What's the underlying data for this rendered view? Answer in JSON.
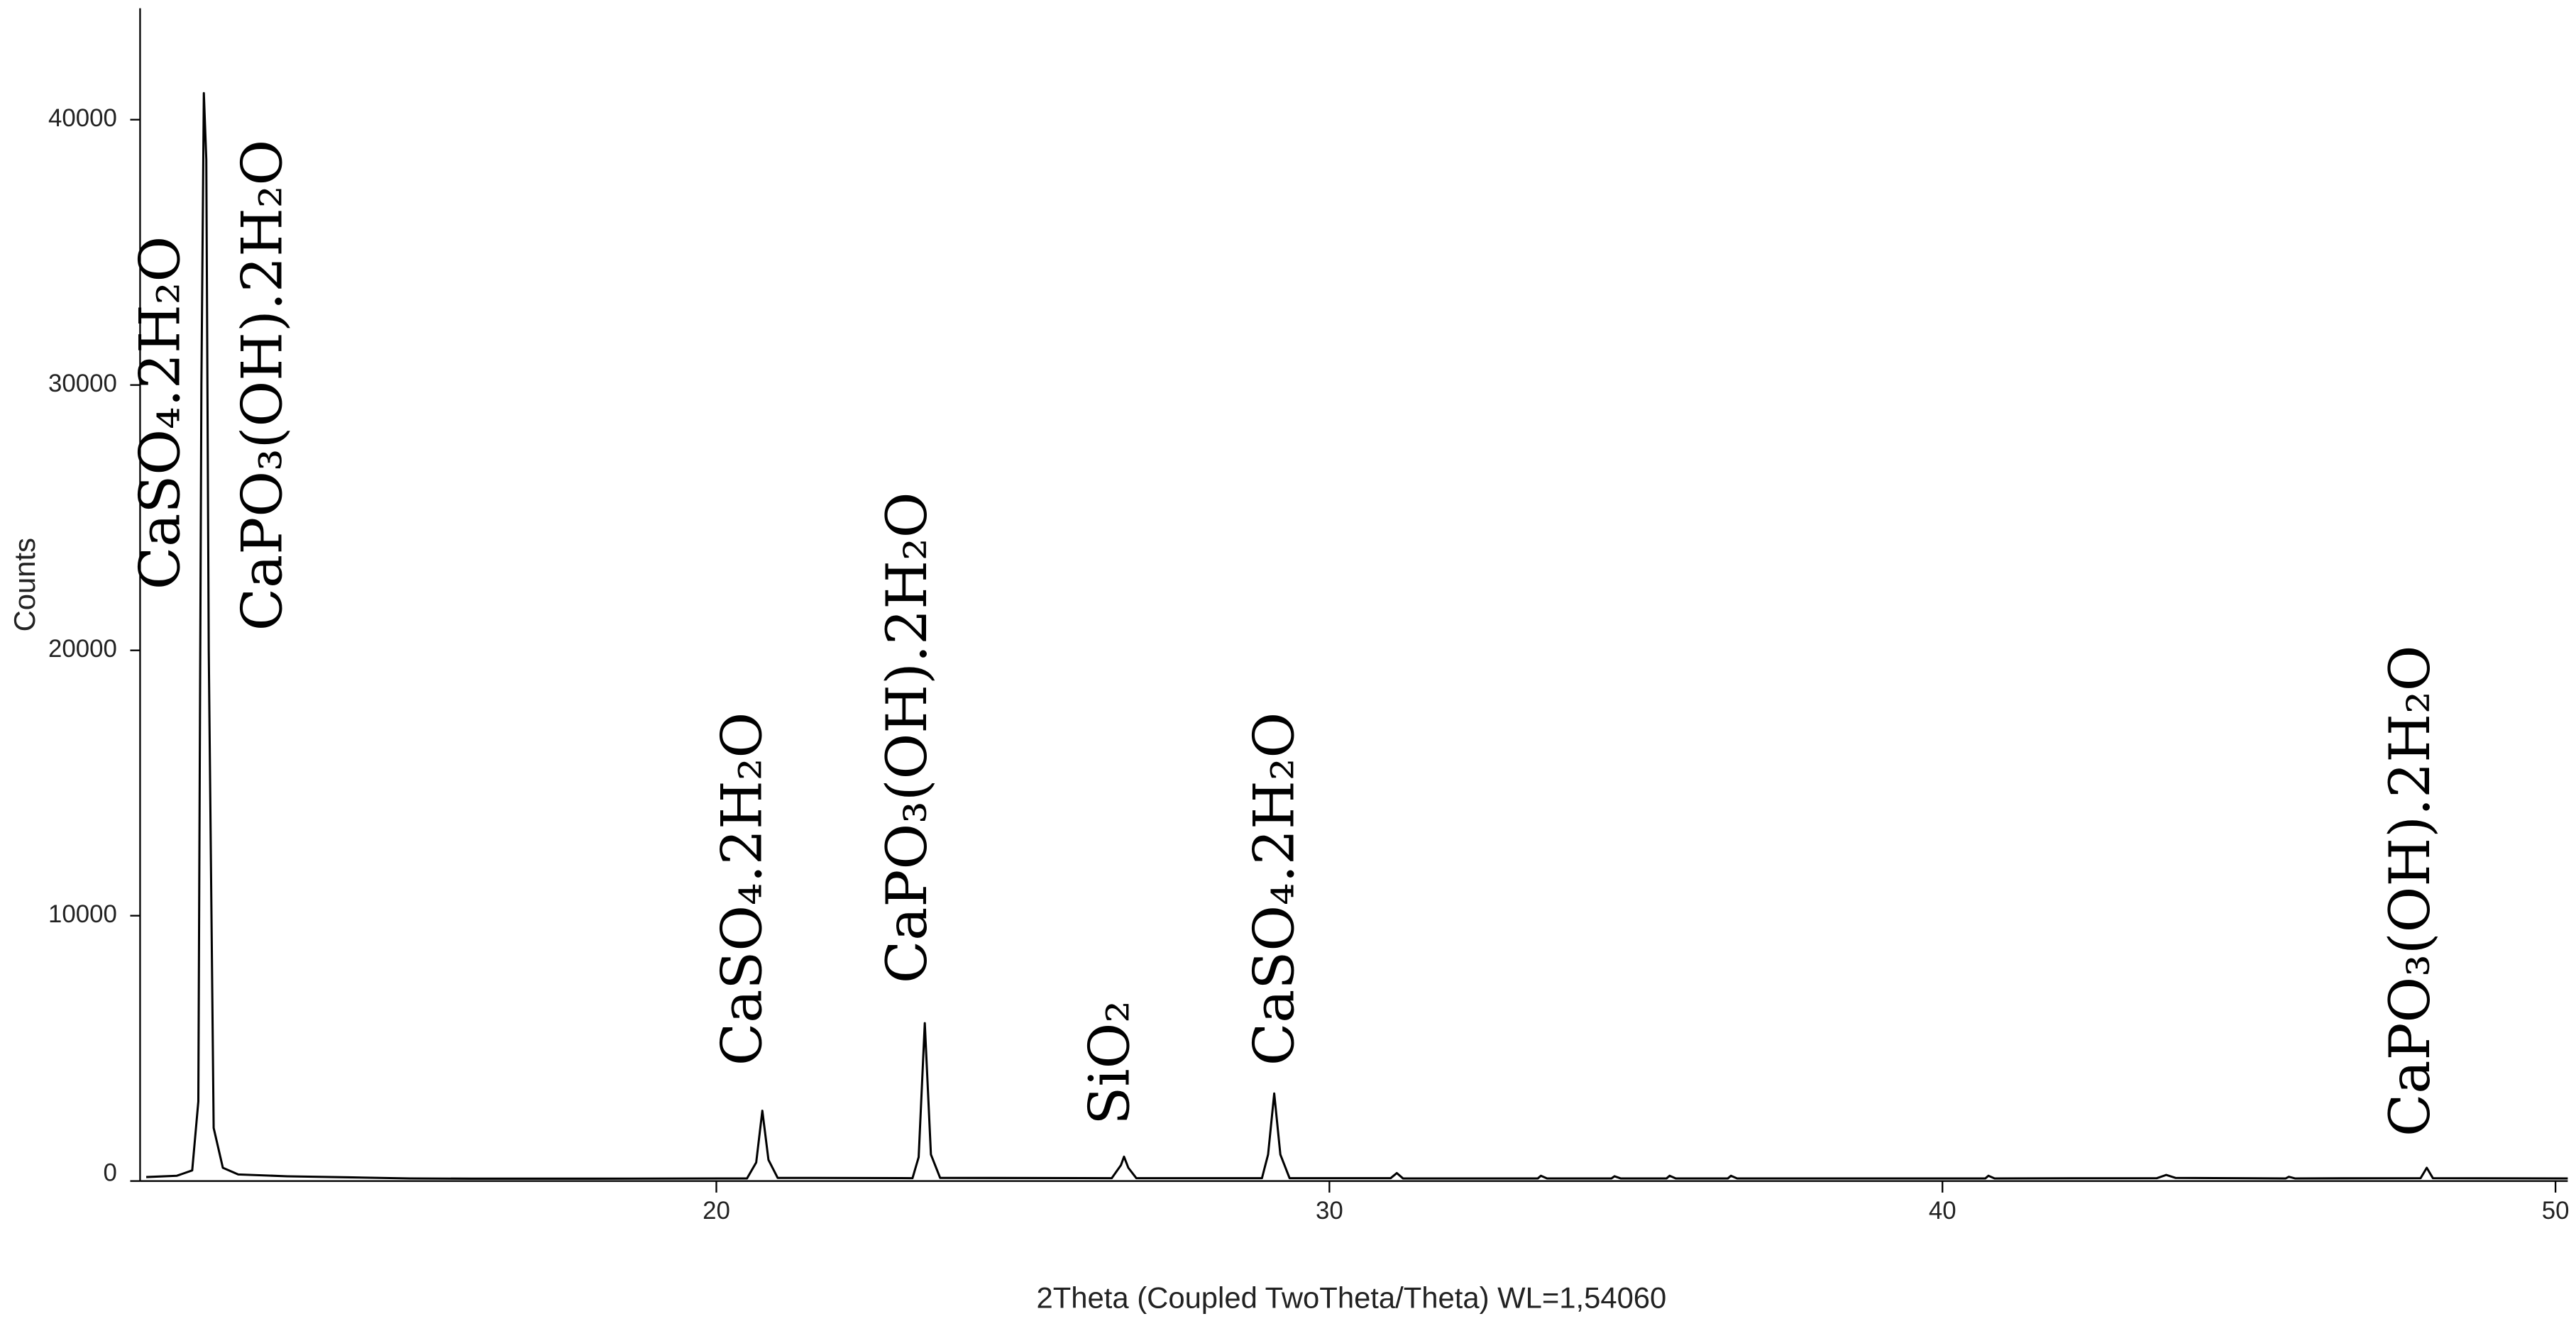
{
  "chart_data": {
    "type": "line",
    "x_label": "2Theta (Coupled TwoTheta/Theta) WL=1,54060",
    "y_label": "Counts",
    "x": [
      10.7,
      11.2,
      11.45,
      11.55,
      11.6,
      11.64,
      11.68,
      11.72,
      11.8,
      11.95,
      12.2,
      13,
      14,
      15,
      16,
      18,
      20.5,
      20.65,
      20.75,
      20.85,
      21.0,
      23.2,
      23.3,
      23.4,
      23.5,
      23.65,
      26.45,
      26.6,
      26.65,
      26.72,
      26.85,
      28.9,
      29.0,
      29.1,
      29.2,
      29.35,
      31.0,
      31.1,
      31.2,
      33.4,
      33.45,
      33.55,
      34.6,
      34.65,
      34.75,
      35.5,
      35.55,
      35.65,
      36.5,
      36.55,
      36.65,
      40.7,
      40.75,
      40.85,
      43.5,
      43.65,
      43.8,
      45.6,
      45.65,
      45.75,
      47.8,
      47.9,
      48.0,
      50.2
    ],
    "series": [
      {
        "color": "#000000",
        "values": [
          150,
          200,
          400,
          3000,
          30000,
          41000,
          38500,
          20000,
          2000,
          500,
          250,
          180,
          140,
          100,
          90,
          90,
          100,
          700,
          2650,
          800,
          120,
          110,
          900,
          5950,
          1000,
          120,
          110,
          600,
          920,
          500,
          110,
          110,
          1000,
          3300,
          1000,
          110,
          110,
          300,
          100,
          100,
          200,
          100,
          100,
          180,
          100,
          100,
          200,
          100,
          100,
          200,
          100,
          100,
          200,
          100,
          110,
          230,
          120,
          100,
          160,
          100,
          110,
          500,
          110,
          100
        ]
      }
    ],
    "xlim": [
      10.6,
      50.2
    ],
    "ylim": [
      0,
      44200
    ],
    "xticks": [
      20,
      30,
      40,
      50
    ],
    "yticks": [
      0,
      10000,
      20000,
      30000,
      40000
    ],
    "annotations": [
      "CaSO₄.2H₂O",
      "CaPO₃(OH).2H₂O",
      "CaSO₄.2H₂O",
      "CaPO₃(OH).2H₂O",
      "SiO₂",
      "CaSO₄.2H₂O",
      "CaPO₃(OH).2H₂O"
    ]
  }
}
